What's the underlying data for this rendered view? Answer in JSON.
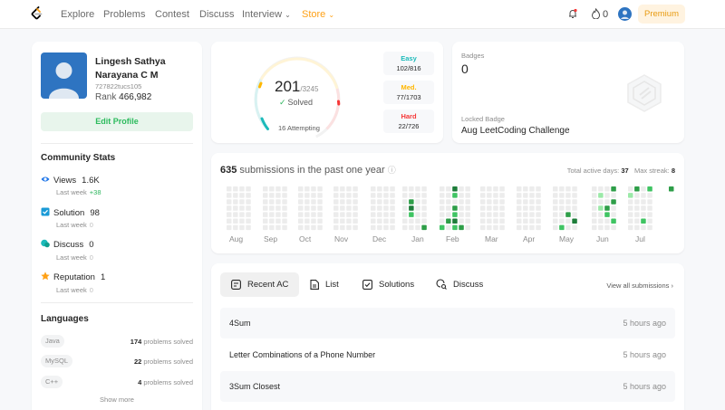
{
  "nav": {
    "items": [
      "Explore",
      "Problems",
      "Contest",
      "Discuss",
      "Interview",
      "Store"
    ],
    "streak": "0",
    "premium": "Premium"
  },
  "profile": {
    "name": "Lingesh Sathya Narayana C M",
    "handle": "727822tucs105",
    "rank_label": "Rank",
    "rank": "466,982",
    "edit": "Edit Profile"
  },
  "community": {
    "title": "Community Stats",
    "stats": [
      {
        "label": "Views",
        "value": "1.6K",
        "sub": "Last week",
        "delta": "+38",
        "icon": "eye-icon"
      },
      {
        "label": "Solution",
        "value": "98",
        "sub": "Last week",
        "delta": "0",
        "icon": "solution-icon"
      },
      {
        "label": "Discuss",
        "value": "0",
        "sub": "Last week",
        "delta": "0",
        "icon": "discuss-icon"
      },
      {
        "label": "Reputation",
        "value": "1",
        "sub": "Last week",
        "delta": "0",
        "icon": "star-icon"
      }
    ]
  },
  "languages": {
    "title": "Languages",
    "items": [
      {
        "name": "Java",
        "count": "174",
        "suffix": "problems solved"
      },
      {
        "name": "MySQL",
        "count": "22",
        "suffix": "problems solved"
      },
      {
        "name": "C++",
        "count": "4",
        "suffix": "problems solved"
      }
    ],
    "show_more": "Show more"
  },
  "solved": {
    "count": "201",
    "total": "/3245",
    "label": "Solved",
    "attempting": "16 Attempting",
    "easy": {
      "label": "Easy",
      "value": "102/816",
      "color": "#1cbaba"
    },
    "medium": {
      "label": "Med.",
      "value": "77/1703",
      "color": "#ffb700"
    },
    "hard": {
      "label": "Hard",
      "value": "22/726",
      "color": "#f63737"
    }
  },
  "badges": {
    "title": "Badges",
    "count": "0",
    "locked_label": "Locked Badge",
    "locked_name": "Aug LeetCoding Challenge"
  },
  "heatmap": {
    "count": "635",
    "label": "submissions in the past one year",
    "active_label": "Total active days:",
    "active_days": "37",
    "streak_label": "Max streak:",
    "streak": "8",
    "months": [
      "Aug",
      "Sep",
      "Oct",
      "Nov",
      "Dec",
      "Jan",
      "Feb",
      "Mar",
      "Apr",
      "May",
      "Jun",
      "Jul"
    ]
  },
  "submissions": {
    "tabs": [
      "Recent AC",
      "List",
      "Solutions",
      "Discuss"
    ],
    "view_all": "View all submissions",
    "rows": [
      {
        "title": "4Sum",
        "time": "5 hours ago"
      },
      {
        "title": "Letter Combinations of a Phone Number",
        "time": "5 hours ago"
      },
      {
        "title": "3Sum Closest",
        "time": "5 hours ago"
      }
    ]
  }
}
